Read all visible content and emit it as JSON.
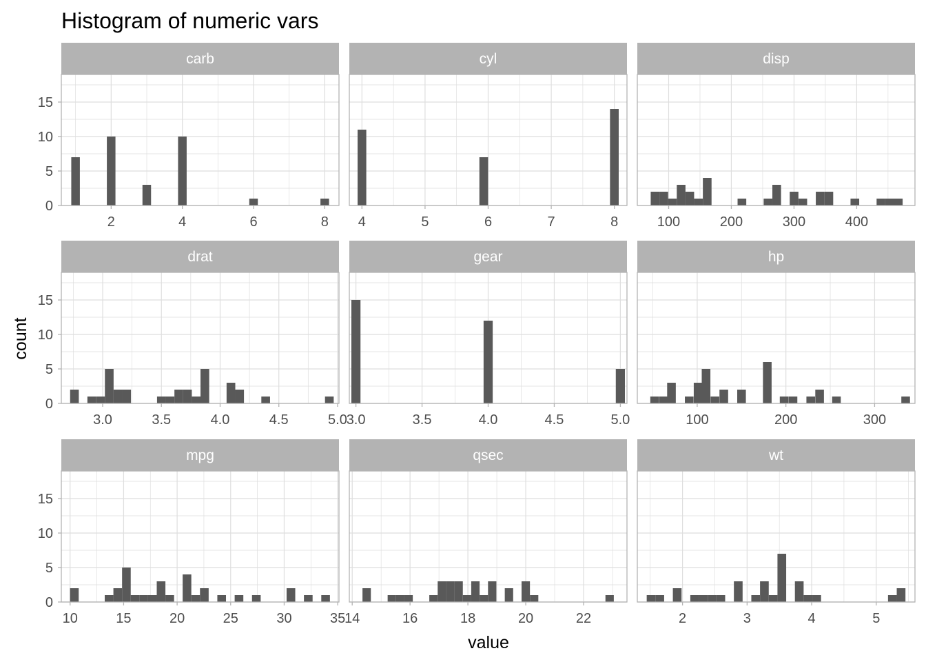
{
  "chart_data": {
    "type": "bar",
    "title": "Histogram of numeric vars",
    "xlabel": "value",
    "ylabel": "count",
    "facet_layout": "3x3 grid, free x scales, shared y scale",
    "grid": true,
    "ylim": [
      0,
      19
    ],
    "y_ticks": [
      0,
      5,
      10,
      15
    ],
    "colors": {
      "bar": "#595959",
      "strip": "#b3b3b3",
      "strip_text": "#ffffff",
      "panel_border": "#b3b3b3",
      "grid": "#dedede",
      "tick_text": "#4d4d4d"
    },
    "panels": [
      {
        "name": "carb",
        "xlim": [
          0.6,
          8.4
        ],
        "x_ticks": [
          "2",
          "4",
          "6",
          "8"
        ],
        "binwidth": 0.2414,
        "x": [
          1,
          2,
          3,
          4,
          6,
          8
        ],
        "values": [
          7,
          10,
          3,
          10,
          1,
          1
        ]
      },
      {
        "name": "cyl",
        "xlim": [
          3.8,
          8.2
        ],
        "x_ticks": [
          "4",
          "5",
          "6",
          "7",
          "8"
        ],
        "binwidth": 0.1379,
        "x": [
          4,
          5.93,
          8
        ],
        "values": [
          11,
          7,
          14
        ]
      },
      {
        "name": "disp",
        "xlim": [
          50,
          493
        ],
        "x_ticks": [
          "100",
          "200",
          "300",
          "400"
        ],
        "binwidth": 13.86,
        "x": [
          78.3,
          92.2,
          106.0,
          119.9,
          133.7,
          147.6,
          161.5,
          216.9,
          258.5,
          272.4,
          300.1,
          314.0,
          341.7,
          355.6,
          397.1,
          438.7,
          452.6,
          466.4
        ],
        "values": [
          2,
          2,
          1,
          3,
          2,
          1,
          4,
          1,
          1,
          3,
          2,
          1,
          2,
          2,
          1,
          1,
          1,
          1
        ]
      },
      {
        "name": "drat",
        "xlim": [
          2.648,
          5.012
        ],
        "x_ticks": [
          "3.0",
          "3.5",
          "4.0",
          "4.5",
          "5.0"
        ],
        "binwidth": 0.0741,
        "x": [
          2.76,
          2.907,
          2.982,
          3.056,
          3.13,
          3.204,
          3.5,
          3.574,
          3.648,
          3.722,
          3.796,
          3.87,
          4.092,
          4.166,
          4.388,
          4.93
        ],
        "values": [
          2,
          1,
          1,
          5,
          2,
          2,
          1,
          1,
          2,
          2,
          1,
          5,
          3,
          2,
          1,
          1
        ]
      },
      {
        "name": "gear",
        "xlim": [
          2.95,
          5.05
        ],
        "x_ticks": [
          "3.0",
          "3.5",
          "4.0",
          "4.5",
          "5.0"
        ],
        "binwidth": 0.069,
        "x": [
          3,
          4,
          5
        ],
        "values": [
          15,
          12,
          5
        ]
      },
      {
        "name": "hp",
        "xlim": [
          32.5,
          345.5
        ],
        "x_ticks": [
          "100",
          "200",
          "300"
        ],
        "binwidth": 9.76,
        "x": [
          52,
          62,
          71,
          91,
          101,
          110,
          120,
          130,
          150,
          179,
          198,
          208,
          228,
          238,
          257,
          335
        ],
        "values": [
          1,
          1,
          3,
          1,
          3,
          5,
          1,
          2,
          2,
          6,
          1,
          1,
          1,
          2,
          1,
          1
        ]
      },
      {
        "name": "mpg",
        "xlim": [
          9.18,
          35.12
        ],
        "x_ticks": [
          "10",
          "15",
          "20",
          "25",
          "30",
          "35"
        ],
        "binwidth": 0.809,
        "x": [
          10.4,
          13.64,
          14.45,
          15.26,
          16.07,
          16.88,
          17.69,
          18.5,
          19.31,
          20.92,
          21.73,
          22.54,
          24.16,
          25.78,
          27.4,
          30.63,
          32.25,
          33.87
        ],
        "values": [
          2,
          1,
          2,
          5,
          1,
          1,
          1,
          3,
          1,
          4,
          1,
          2,
          1,
          1,
          1,
          2,
          1,
          1
        ],
        "x_tick_positions": [
          10,
          15,
          20,
          25,
          30,
          35
        ]
      },
      {
        "name": "qsec",
        "xlim": [
          13.9,
          23.5
        ],
        "x_ticks": [
          "14",
          "16",
          "18",
          "20",
          "22"
        ],
        "binwidth": 0.2893,
        "x": [
          14.5,
          15.37,
          15.66,
          15.95,
          16.81,
          17.1,
          17.39,
          17.68,
          17.97,
          18.26,
          18.55,
          18.84,
          19.42,
          20.0,
          20.29,
          22.9
        ],
        "values": [
          2,
          1,
          1,
          1,
          1,
          3,
          3,
          3,
          1,
          3,
          1,
          3,
          2,
          3,
          1,
          1
        ]
      },
      {
        "name": "wt",
        "xlim": [
          1.3,
          5.6
        ],
        "x_ticks": [
          "2",
          "3",
          "4",
          "5"
        ],
        "binwidth": 0.1349,
        "x": [
          1.513,
          1.648,
          1.918,
          2.188,
          2.323,
          2.458,
          2.593,
          2.863,
          3.133,
          3.268,
          3.403,
          3.538,
          3.808,
          3.943,
          4.078,
          5.25,
          5.385
        ],
        "values": [
          1,
          1,
          2,
          1,
          1,
          1,
          1,
          3,
          1,
          3,
          1,
          7,
          3,
          1,
          1,
          1,
          2
        ]
      }
    ]
  }
}
